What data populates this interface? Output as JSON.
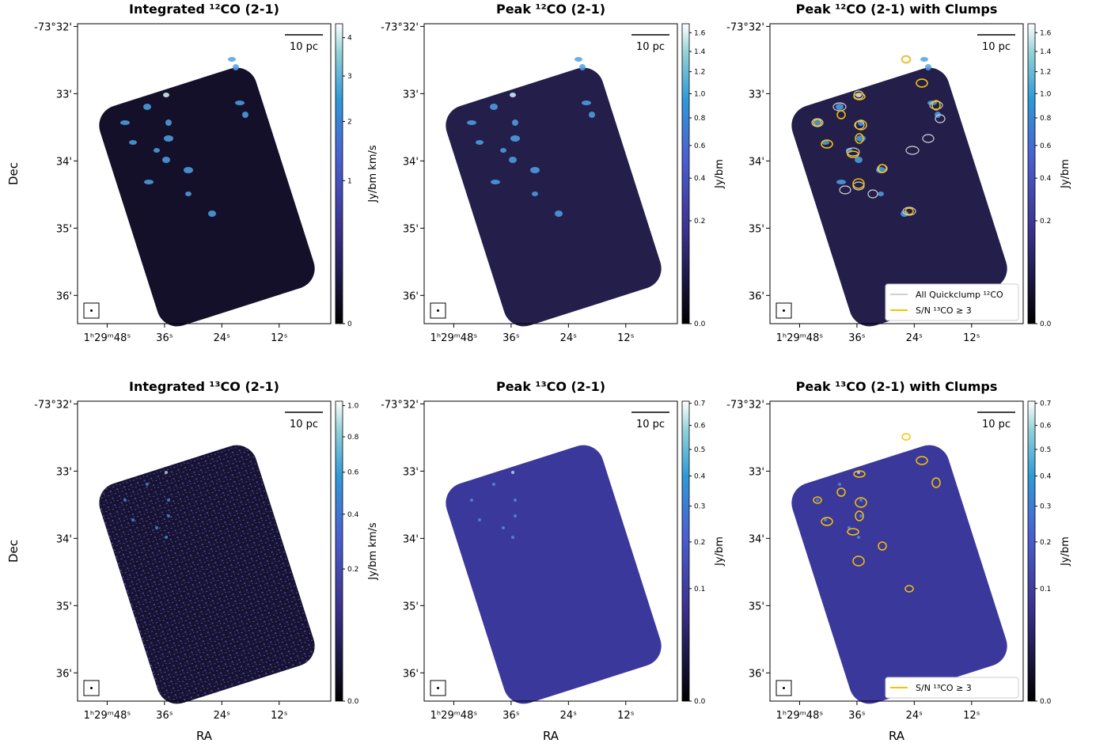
{
  "chart_data": [
    {
      "type": "image",
      "title": "Integrated ¹²CO (2-1)",
      "ylabel": "Dec",
      "xlim": [
        54.2,
        1.2
      ],
      "ylim": [
        36.42,
        31.96
      ],
      "xticks": [
        {
          "value": 48,
          "label": "1ʰ29ᵐ48ˢ"
        },
        {
          "value": 36,
          "label": "36ˢ"
        },
        {
          "value": 24,
          "label": "24ˢ"
        },
        {
          "value": 12,
          "label": "12ˢ"
        }
      ],
      "yticks": [
        {
          "value": 32,
          "label": "-73°32'"
        },
        {
          "value": 33,
          "label": "33'"
        },
        {
          "value": 34,
          "label": "34'"
        },
        {
          "value": 35,
          "label": "35'"
        },
        {
          "value": 36,
          "label": "36'"
        }
      ],
      "scalebar": "10 pc",
      "colorbar": {
        "label": "Jy/bm km/s",
        "stretch": "sqrt",
        "lim": [
          0,
          4.4
        ],
        "ticks": [
          0,
          1,
          2,
          3,
          4
        ]
      }
    },
    {
      "type": "image",
      "title": "Peak ¹²CO (2-1)",
      "xlim": [
        54.2,
        1.2
      ],
      "ylim": [
        36.42,
        31.96
      ],
      "xticks": [
        {
          "value": 48,
          "label": "1ʰ29ᵐ48ˢ"
        },
        {
          "value": 36,
          "label": "36ˢ"
        },
        {
          "value": 24,
          "label": "24ˢ"
        },
        {
          "value": 12,
          "label": "12ˢ"
        }
      ],
      "yticks": [
        {
          "value": 32,
          "label": "-73°32'"
        },
        {
          "value": 33,
          "label": "33'"
        },
        {
          "value": 34,
          "label": "34'"
        },
        {
          "value": 35,
          "label": "35'"
        },
        {
          "value": 36,
          "label": "36'"
        }
      ],
      "scalebar": "10 pc",
      "colorbar": {
        "label": "Jy/bm",
        "stretch": "sqrt",
        "lim": [
          0,
          1.7
        ],
        "ticks": [
          {
            "value": 0,
            "label": "0.0"
          },
          0.2,
          0.4,
          0.6,
          0.8,
          {
            "value": 1,
            "label": "1.0"
          },
          1.2,
          1.4,
          1.6
        ]
      }
    },
    {
      "type": "image",
      "title": "Peak ¹²CO (2-1) with Clumps",
      "xlim": [
        54.2,
        1.2
      ],
      "ylim": [
        36.42,
        31.96
      ],
      "xticks": [
        {
          "value": 48,
          "label": "1ʰ29ᵐ48ˢ"
        },
        {
          "value": 36,
          "label": "36ˢ"
        },
        {
          "value": 24,
          "label": "24ˢ"
        },
        {
          "value": 12,
          "label": "12ˢ"
        }
      ],
      "yticks": [
        {
          "value": 32,
          "label": "-73°32'"
        },
        {
          "value": 33,
          "label": "33'"
        },
        {
          "value": 34,
          "label": "34'"
        },
        {
          "value": 35,
          "label": "35'"
        },
        {
          "value": 36,
          "label": "36'"
        }
      ],
      "scalebar": "10 pc",
      "legend_position": "lower right",
      "series": [
        {
          "name": "All Quickclump ¹²CO",
          "color": "#d0d0d0"
        },
        {
          "name": "S/N ¹³CO ≥ 3",
          "color": "#f5c400"
        }
      ],
      "colorbar": {
        "label": "Jy/bm",
        "stretch": "sqrt",
        "lim": [
          0,
          1.7
        ],
        "ticks": [
          {
            "value": 0,
            "label": "0.0"
          },
          0.2,
          0.4,
          0.6,
          0.8,
          {
            "value": 1,
            "label": "1.0"
          },
          1.2,
          1.4,
          1.6
        ]
      }
    },
    {
      "type": "image",
      "title": "Integrated ¹³CO (2-1)",
      "ylabel": "Dec",
      "xlabel": "RA",
      "xlim": [
        54.2,
        1.2
      ],
      "ylim": [
        36.42,
        31.96
      ],
      "xticks": [
        {
          "value": 48,
          "label": "1ʰ29ᵐ48ˢ"
        },
        {
          "value": 36,
          "label": "36ˢ"
        },
        {
          "value": 24,
          "label": "24ˢ"
        },
        {
          "value": 12,
          "label": "12ˢ"
        }
      ],
      "yticks": [
        {
          "value": 32,
          "label": "-73°32'"
        },
        {
          "value": 33,
          "label": "33'"
        },
        {
          "value": 34,
          "label": "34'"
        },
        {
          "value": 35,
          "label": "35'"
        },
        {
          "value": 36,
          "label": "36'"
        }
      ],
      "scalebar": "10 pc",
      "colorbar": {
        "label": "Jy/bm km/s",
        "stretch": "sqrt",
        "lim": [
          0,
          1.03
        ],
        "ticks": [
          {
            "value": 0,
            "label": "0.0"
          },
          0.2,
          0.4,
          0.6,
          0.8,
          {
            "value": 1,
            "label": "1.0"
          }
        ]
      }
    },
    {
      "type": "image",
      "title": "Peak ¹³CO (2-1)",
      "xlabel": "RA",
      "xlim": [
        54.2,
        1.2
      ],
      "ylim": [
        36.42,
        31.96
      ],
      "xticks": [
        {
          "value": 48,
          "label": "1ʰ29ᵐ48ˢ"
        },
        {
          "value": 36,
          "label": "36ˢ"
        },
        {
          "value": 24,
          "label": "24ˢ"
        },
        {
          "value": 12,
          "label": "12ˢ"
        }
      ],
      "yticks": [
        {
          "value": 32,
          "label": "-73°32'"
        },
        {
          "value": 33,
          "label": "33'"
        },
        {
          "value": 34,
          "label": "34'"
        },
        {
          "value": 35,
          "label": "35'"
        },
        {
          "value": 36,
          "label": "36'"
        }
      ],
      "scalebar": "10 pc",
      "colorbar": {
        "label": "Jy/bm",
        "stretch": "sqrt",
        "lim": [
          0,
          0.71
        ],
        "ticks": [
          {
            "value": 0,
            "label": "0.0"
          },
          0.1,
          0.2,
          0.3,
          0.4,
          0.5,
          0.6,
          0.7
        ]
      }
    },
    {
      "type": "image",
      "title": "Peak ¹³CO (2-1) with Clumps",
      "xlabel": "RA",
      "xlim": [
        54.2,
        1.2
      ],
      "ylim": [
        36.42,
        31.96
      ],
      "xticks": [
        {
          "value": 48,
          "label": "1ʰ29ᵐ48ˢ"
        },
        {
          "value": 36,
          "label": "36ˢ"
        },
        {
          "value": 24,
          "label": "24ˢ"
        },
        {
          "value": 12,
          "label": "12ˢ"
        }
      ],
      "yticks": [
        {
          "value": 32,
          "label": "-73°32'"
        },
        {
          "value": 33,
          "label": "33'"
        },
        {
          "value": 34,
          "label": "34'"
        },
        {
          "value": 35,
          "label": "35'"
        },
        {
          "value": 36,
          "label": "36'"
        }
      ],
      "scalebar": "10 pc",
      "legend_position": "lower right",
      "series": [
        {
          "name": "S/N ¹³CO ≥ 3",
          "color": "#f5c400"
        }
      ],
      "colorbar": {
        "label": "Jy/bm",
        "stretch": "sqrt",
        "lim": [
          0,
          0.71
        ],
        "ticks": [
          {
            "value": 0,
            "label": "0.0"
          },
          0.1,
          0.2,
          0.3,
          0.4,
          0.5,
          0.6,
          0.7
        ]
      }
    }
  ]
}
